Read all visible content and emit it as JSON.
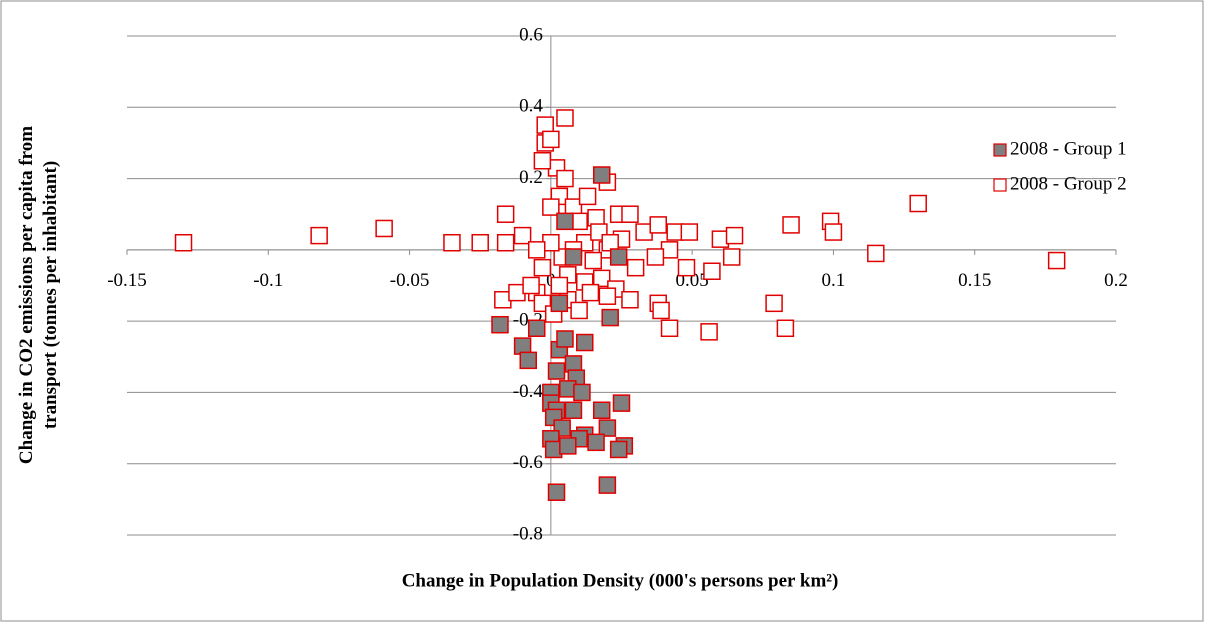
{
  "chart_data": {
    "type": "scatter",
    "xlabel": "Change in Population Density (000's persons per km²)",
    "ylabel": "Change in CO2 emissions per capita from transport (tonnes per inhabitant)",
    "xlim": [
      -0.15,
      0.2
    ],
    "ylim": [
      -0.8,
      0.6
    ],
    "xticks": [
      -0.15,
      -0.1,
      -0.05,
      0,
      0.05,
      0.1,
      0.15,
      0.2
    ],
    "yticks": [
      -0.8,
      -0.6,
      -0.4,
      -0.2,
      0,
      0.2,
      0.4,
      0.6
    ],
    "grid": true,
    "legend": "right",
    "series": [
      {
        "name": "2008 - Group 1",
        "color": "#7f7f7f",
        "x": [
          0.018,
          0.024,
          0.021,
          -0.018,
          -0.005,
          -0.01,
          -0.008,
          0.003,
          0.005,
          0.012,
          0.008,
          0.002,
          0.009,
          0.006,
          0.0,
          0.011,
          0.0,
          0.002,
          0.008,
          0.018,
          0.025,
          0.001,
          0.004,
          0.012,
          0.02,
          0.0,
          0.01,
          0.016,
          0.026,
          0.001,
          0.006,
          0.024,
          0.002,
          0.02,
          0.008,
          0.005,
          0.003
        ],
        "y": [
          0.21,
          -0.02,
          -0.19,
          -0.21,
          -0.22,
          -0.27,
          -0.31,
          -0.28,
          -0.25,
          -0.26,
          -0.32,
          -0.34,
          -0.36,
          -0.39,
          -0.4,
          -0.4,
          -0.43,
          -0.45,
          -0.45,
          -0.45,
          -0.43,
          -0.47,
          -0.5,
          -0.52,
          -0.5,
          -0.53,
          -0.53,
          -0.54,
          -0.55,
          -0.56,
          -0.55,
          -0.56,
          -0.68,
          -0.66,
          -0.02,
          0.08,
          -0.15
        ]
      },
      {
        "name": "2008 - Group 2",
        "color": "#ffffff",
        "x": [
          -0.13,
          -0.082,
          -0.059,
          -0.035,
          -0.025,
          -0.016,
          -0.016,
          -0.01,
          -0.017,
          -0.012,
          -0.005,
          -0.002,
          -0.002,
          0.005,
          0.0,
          0.002,
          -0.003,
          0.005,
          0.003,
          0.008,
          0.013,
          0.02,
          0.0,
          0.01,
          0.016,
          0.024,
          0.028,
          0.033,
          0.038,
          0.044,
          0.049,
          0.06,
          0.065,
          0.085,
          0.099,
          0.1,
          0.13,
          0.115,
          0.179,
          0.064,
          0.057,
          0.048,
          0.042,
          0.037,
          0.03,
          0.025,
          0.02,
          0.015,
          0.012,
          0.008,
          0.004,
          0.0,
          -0.005,
          -0.003,
          0.006,
          0.012,
          0.018,
          0.023,
          0.028,
          0.02,
          0.038,
          0.039,
          0.042,
          0.056,
          0.079,
          0.083,
          -0.003,
          0.001,
          0.006,
          0.01,
          0.014,
          -0.007,
          0.003,
          0.017,
          0.021
        ],
        "y": [
          0.02,
          0.04,
          0.06,
          0.02,
          0.02,
          0.1,
          0.02,
          0.04,
          -0.14,
          -0.12,
          -0.12,
          0.35,
          0.3,
          0.37,
          0.31,
          0.23,
          0.25,
          0.2,
          0.15,
          0.12,
          0.15,
          0.19,
          0.12,
          0.08,
          0.09,
          0.1,
          0.1,
          0.05,
          0.07,
          0.05,
          0.05,
          0.03,
          0.04,
          0.07,
          0.08,
          0.05,
          0.13,
          -0.01,
          -0.03,
          -0.02,
          -0.06,
          -0.05,
          0.0,
          -0.02,
          -0.05,
          0.03,
          0.0,
          -0.03,
          0.02,
          0.0,
          -0.02,
          0.02,
          0.0,
          -0.05,
          -0.07,
          -0.09,
          -0.08,
          -0.11,
          -0.14,
          -0.13,
          -0.15,
          -0.17,
          -0.22,
          -0.23,
          -0.15,
          -0.22,
          -0.15,
          -0.18,
          -0.14,
          -0.17,
          -0.12,
          -0.1,
          -0.1,
          0.05,
          0.02
        ]
      }
    ]
  }
}
